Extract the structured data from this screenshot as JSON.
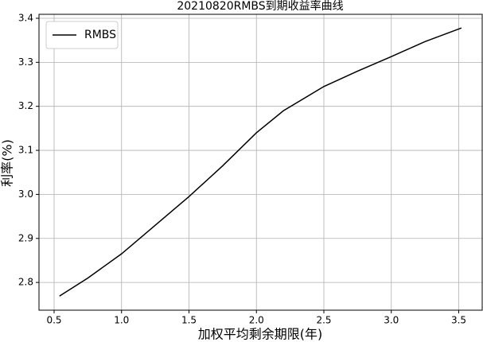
{
  "chart_data": {
    "type": "line",
    "title": "20210820RMBS到期收益率曲线",
    "x_label": "加权平均剩余期限(年)",
    "y_label": "利率(%)",
    "x": [
      0.54,
      0.75,
      1.0,
      1.25,
      1.5,
      1.75,
      2.0,
      2.2,
      2.5,
      2.75,
      3.0,
      3.25,
      3.52
    ],
    "series": [
      {
        "name": "RMBS",
        "color": "#000000",
        "values": [
          2.769,
          2.81,
          2.865,
          2.93,
          2.995,
          3.065,
          3.14,
          3.19,
          3.245,
          3.28,
          3.313,
          3.347,
          3.378
        ]
      }
    ],
    "xlim": [
      0.388,
      3.674
    ],
    "ylim": [
      2.737,
      3.409
    ],
    "xticks": [
      0.5,
      {
        "value": 1.0,
        "label": "1.0"
      },
      1.5,
      {
        "value": 2.0,
        "label": "2.0"
      },
      2.5,
      {
        "value": 3.0,
        "label": "3.0"
      },
      3.5
    ],
    "yticks": [
      2.8,
      2.9,
      {
        "value": 3.0,
        "label": "3.0"
      },
      3.1,
      3.2,
      3.3,
      3.4
    ],
    "grid": true,
    "legend": "upper left"
  }
}
